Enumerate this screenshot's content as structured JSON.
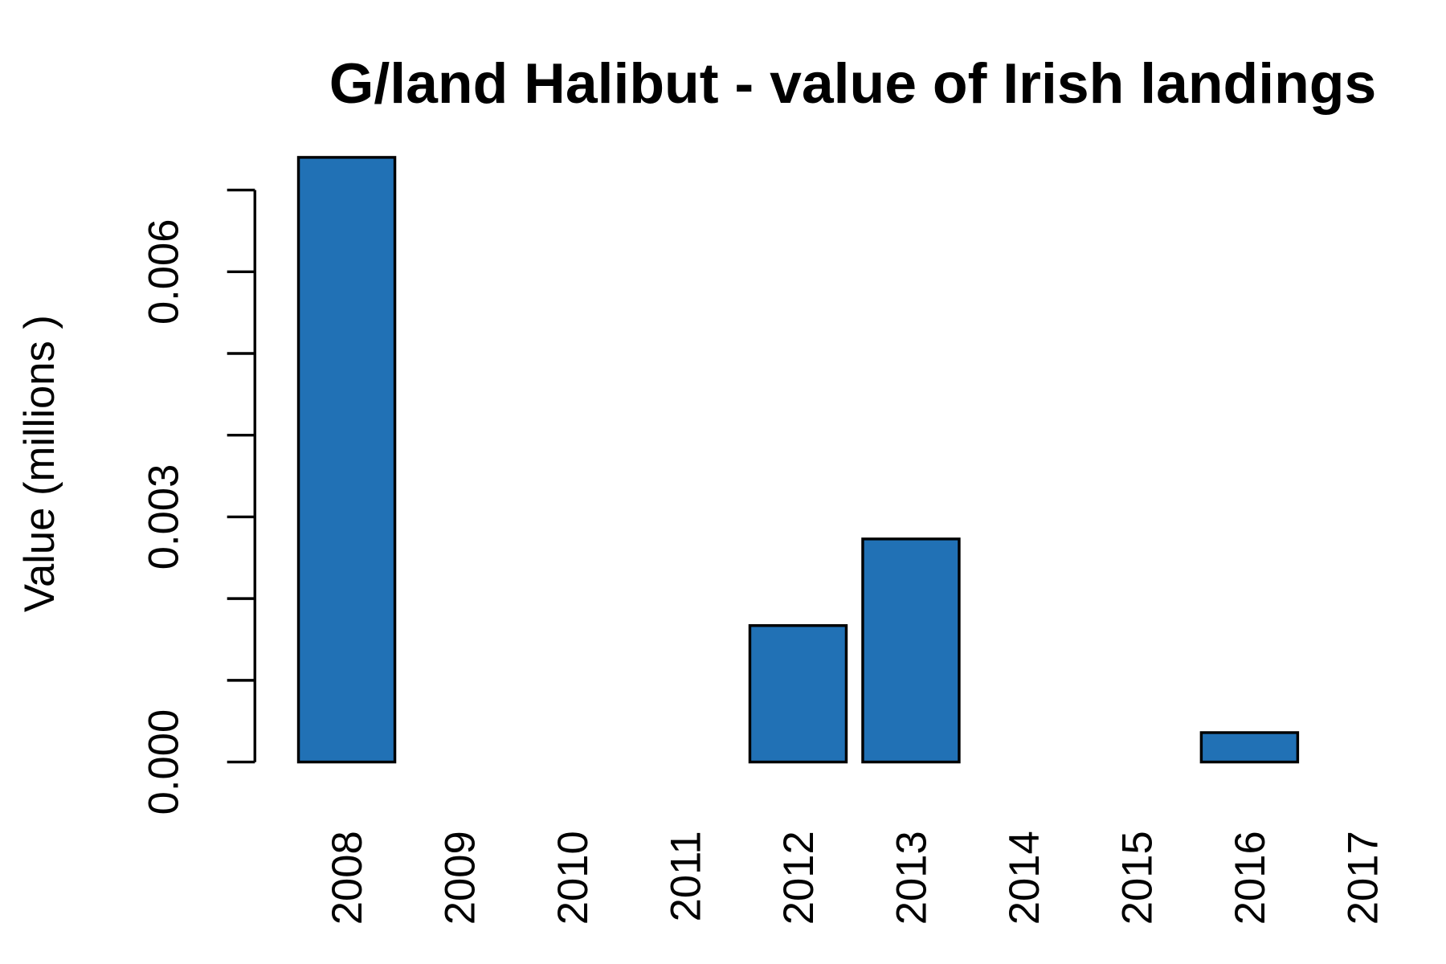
{
  "chart_data": {
    "type": "bar",
    "title": "G/land Halibut - value of Irish landings",
    "y_label": "Value (millions )",
    "categories": [
      "2008",
      "2009",
      "2010",
      "2011",
      "2012",
      "2013",
      "2014",
      "2015",
      "2016",
      "2017"
    ],
    "values": [
      0.0074,
      null,
      null,
      null,
      0.00167,
      0.00273,
      null,
      null,
      0.00036,
      null
    ],
    "color": "#2171b5",
    "ylim": [
      0,
      0.0075
    ],
    "yticks": [
      {
        "value": 0,
        "label": "0.000"
      },
      {
        "value": 0.003,
        "label": "0.003"
      },
      {
        "value": 0.006,
        "label": "0.006"
      }
    ],
    "yminorticks": [
      0.001,
      0.002,
      0.004,
      0.005,
      0.007
    ]
  }
}
